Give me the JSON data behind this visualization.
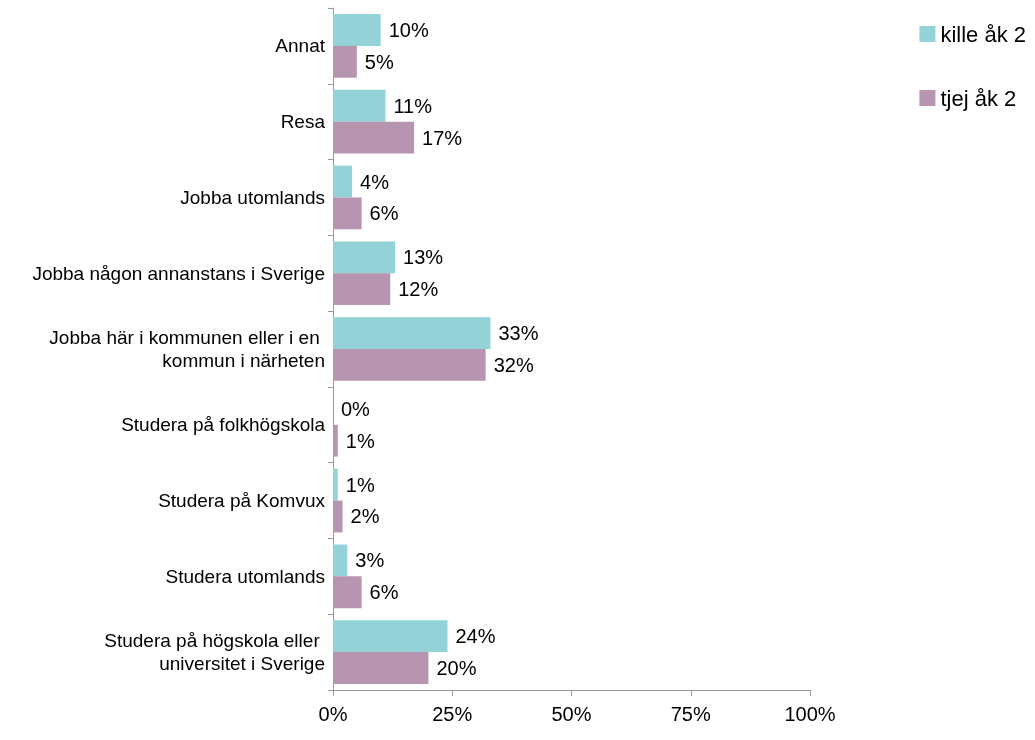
{
  "chart_data": {
    "type": "bar",
    "orientation": "horizontal",
    "categories": [
      "Annat",
      "Resa",
      "Jobba utomlands",
      "Jobba någon annanstans i Sverige",
      "Jobba här i kommunen eller i en kommun i närheten",
      "Studera på folkhögskola",
      "Studera på Komvux",
      "Studera utomlands",
      "Studera på högskola eller universitet i Sverige"
    ],
    "series": [
      {
        "name": "kille åk 2",
        "color": "#93d3d8",
        "values": [
          10,
          11,
          4,
          13,
          33,
          0,
          1,
          3,
          24
        ],
        "value_labels": [
          "10%",
          "11%",
          "4%",
          "13%",
          "33%",
          "0%",
          "1%",
          "3%",
          "24%"
        ]
      },
      {
        "name": "tjej åk 2",
        "color": "#b794b0",
        "values": [
          5,
          17,
          6,
          12,
          32,
          1,
          2,
          6,
          20
        ],
        "value_labels": [
          "5%",
          "17%",
          "6%",
          "12%",
          "32%",
          "1%",
          "2%",
          "6%",
          "20%"
        ]
      }
    ],
    "xlim": [
      0,
      100
    ],
    "xticks": [
      {
        "value": 0,
        "label": "0%"
      },
      {
        "value": 25,
        "label": "25%"
      },
      {
        "value": 50,
        "label": "50%"
      },
      {
        "value": 75,
        "label": "75%"
      },
      {
        "value": 100,
        "label": "100%"
      }
    ],
    "grid": false,
    "legend": "top right"
  }
}
